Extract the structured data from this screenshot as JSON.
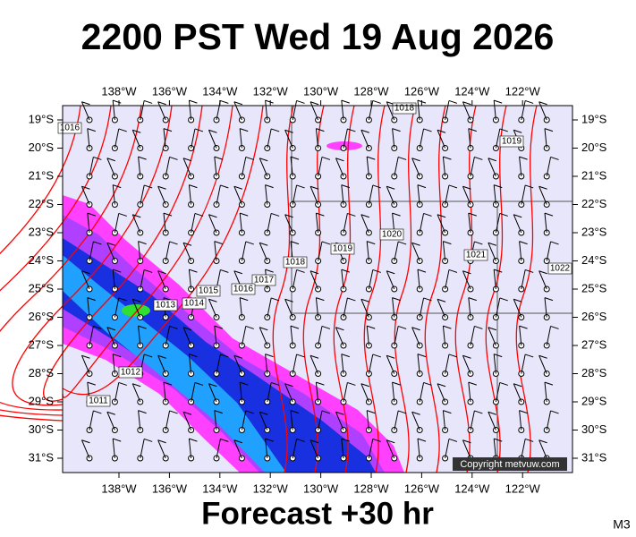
{
  "header": {
    "title": "2200 PST Wed 19 Aug 2026"
  },
  "map": {
    "lon_labels": [
      "138°W",
      "136°W",
      "134°W",
      "132°W",
      "130°W",
      "128°W",
      "126°W",
      "124°W",
      "122°W"
    ],
    "lat_labels": [
      "19°S",
      "20°S",
      "21°S",
      "22°S",
      "23°S",
      "24°S",
      "25°S",
      "26°S",
      "27°S",
      "28°S",
      "29°S",
      "30°S",
      "31°S"
    ],
    "isobar_labels": [
      "1016",
      "1018",
      "1019",
      "1020",
      "1021",
      "1022",
      "1018",
      "1019",
      "1017",
      "1016",
      "1015",
      "1014",
      "1013",
      "1012",
      "1011"
    ],
    "copyright": "Copyright metvuw.com"
  },
  "footer": {
    "text": "Forecast +30 hr",
    "corner": "M3"
  }
}
